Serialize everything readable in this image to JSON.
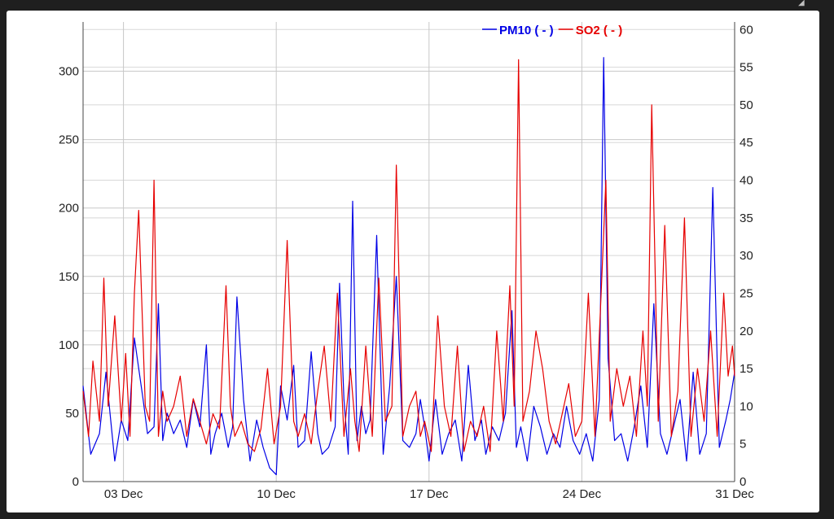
{
  "chart_data": {
    "type": "line",
    "title": "",
    "xlabel": "",
    "ylabel_left": "",
    "ylabel_right": "",
    "x_ticks": [
      "03 Dec",
      "10 Dec",
      "17 Dec",
      "24 Dec",
      "31 Dec"
    ],
    "x_tick_day": [
      3,
      10,
      17,
      24,
      31
    ],
    "x_range_day": [
      1.15,
      31.0
    ],
    "y_left_ticks": [
      0,
      50,
      100,
      150,
      200,
      250,
      300
    ],
    "y_left_range": [
      0,
      336
    ],
    "y_right_ticks": [
      0,
      5,
      10,
      15,
      20,
      25,
      30,
      35,
      40,
      45,
      50,
      55,
      60
    ],
    "y_right_range": [
      0,
      61
    ],
    "grid": true,
    "legend_position": "top-center",
    "series": [
      {
        "name": "PM10 ( - )",
        "axis": "left",
        "color": "#0000e6",
        "x_day": [
          1.15,
          1.5,
          1.9,
          2.2,
          2.6,
          2.9,
          3.2,
          3.5,
          3.9,
          4.1,
          4.4,
          4.6,
          4.8,
          5.0,
          5.3,
          5.6,
          5.9,
          6.2,
          6.5,
          6.8,
          7.0,
          7.2,
          7.5,
          7.8,
          8.0,
          8.2,
          8.5,
          8.8,
          9.1,
          9.4,
          9.7,
          10.0,
          10.2,
          10.5,
          10.8,
          11.0,
          11.3,
          11.6,
          11.9,
          12.1,
          12.4,
          12.7,
          12.9,
          13.1,
          13.3,
          13.5,
          13.7,
          13.9,
          14.1,
          14.3,
          14.6,
          14.9,
          15.2,
          15.5,
          15.8,
          16.1,
          16.4,
          16.6,
          16.8,
          17.0,
          17.3,
          17.6,
          17.9,
          18.2,
          18.5,
          18.8,
          19.1,
          19.4,
          19.6,
          19.9,
          20.2,
          20.5,
          20.8,
          21.0,
          21.2,
          21.5,
          21.8,
          22.1,
          22.4,
          22.7,
          23.0,
          23.3,
          23.6,
          23.9,
          24.2,
          24.5,
          24.8,
          25.0,
          25.2,
          25.5,
          25.8,
          26.1,
          26.4,
          26.7,
          27.0,
          27.3,
          27.6,
          27.9,
          28.2,
          28.5,
          28.8,
          29.1,
          29.4,
          29.7,
          30.0,
          30.3,
          30.6,
          30.8,
          31.0
        ],
        "values": [
          70,
          20,
          35,
          80,
          15,
          45,
          30,
          105,
          60,
          35,
          40,
          130,
          30,
          50,
          35,
          45,
          25,
          60,
          40,
          100,
          20,
          35,
          50,
          25,
          40,
          135,
          60,
          15,
          45,
          25,
          10,
          5,
          70,
          45,
          85,
          25,
          30,
          95,
          35,
          20,
          25,
          40,
          145,
          60,
          20,
          205,
          30,
          55,
          35,
          45,
          180,
          20,
          70,
          150,
          30,
          25,
          35,
          60,
          40,
          15,
          60,
          20,
          35,
          45,
          15,
          85,
          30,
          45,
          20,
          40,
          30,
          50,
          125,
          25,
          40,
          15,
          55,
          40,
          20,
          35,
          25,
          55,
          30,
          20,
          35,
          15,
          60,
          310,
          90,
          30,
          35,
          15,
          40,
          70,
          25,
          130,
          35,
          20,
          40,
          60,
          15,
          80,
          20,
          35,
          215,
          25,
          45,
          60,
          80
        ]
      },
      {
        "name": "SO2 ( - )",
        "axis": "right",
        "color": "#e60000",
        "x_day": [
          1.15,
          1.4,
          1.6,
          1.9,
          2.1,
          2.3,
          2.6,
          2.9,
          3.1,
          3.3,
          3.5,
          3.7,
          4.0,
          4.2,
          4.4,
          4.6,
          4.8,
          5.0,
          5.3,
          5.6,
          5.9,
          6.2,
          6.5,
          6.8,
          7.1,
          7.4,
          7.7,
          7.9,
          8.1,
          8.4,
          8.7,
          9.0,
          9.3,
          9.6,
          9.9,
          10.2,
          10.5,
          10.8,
          11.0,
          11.3,
          11.6,
          11.9,
          12.2,
          12.5,
          12.8,
          13.1,
          13.4,
          13.6,
          13.8,
          14.1,
          14.4,
          14.7,
          15.0,
          15.3,
          15.5,
          15.8,
          16.1,
          16.4,
          16.6,
          16.8,
          17.1,
          17.4,
          17.7,
          18.0,
          18.3,
          18.6,
          18.9,
          19.2,
          19.5,
          19.8,
          20.1,
          20.4,
          20.7,
          20.9,
          21.1,
          21.3,
          21.6,
          21.9,
          22.2,
          22.5,
          22.8,
          23.1,
          23.4,
          23.7,
          24.0,
          24.3,
          24.6,
          24.9,
          25.1,
          25.3,
          25.6,
          25.9,
          26.2,
          26.5,
          26.8,
          27.0,
          27.2,
          27.5,
          27.8,
          28.1,
          28.4,
          28.7,
          29.0,
          29.3,
          29.6,
          29.9,
          30.2,
          30.5,
          30.7,
          30.9,
          31.0
        ],
        "values": [
          12,
          6,
          16,
          8,
          27,
          10,
          22,
          8,
          17,
          6,
          25,
          36,
          10,
          8,
          40,
          6,
          12,
          8,
          10,
          14,
          6,
          11,
          8,
          5,
          9,
          7,
          26,
          10,
          6,
          8,
          5,
          4,
          7,
          15,
          5,
          10,
          32,
          8,
          6,
          9,
          5,
          12,
          18,
          8,
          25,
          6,
          15,
          8,
          4,
          18,
          6,
          27,
          8,
          10,
          42,
          6,
          10,
          12,
          6,
          8,
          4,
          22,
          10,
          6,
          18,
          4,
          8,
          6,
          10,
          4,
          20,
          8,
          26,
          10,
          56,
          8,
          12,
          20,
          15,
          8,
          5,
          9,
          13,
          6,
          8,
          25,
          6,
          26,
          40,
          8,
          15,
          10,
          14,
          6,
          20,
          10,
          50,
          8,
          34,
          6,
          12,
          35,
          6,
          15,
          8,
          20,
          6,
          25,
          14,
          18,
          14
        ]
      }
    ]
  }
}
